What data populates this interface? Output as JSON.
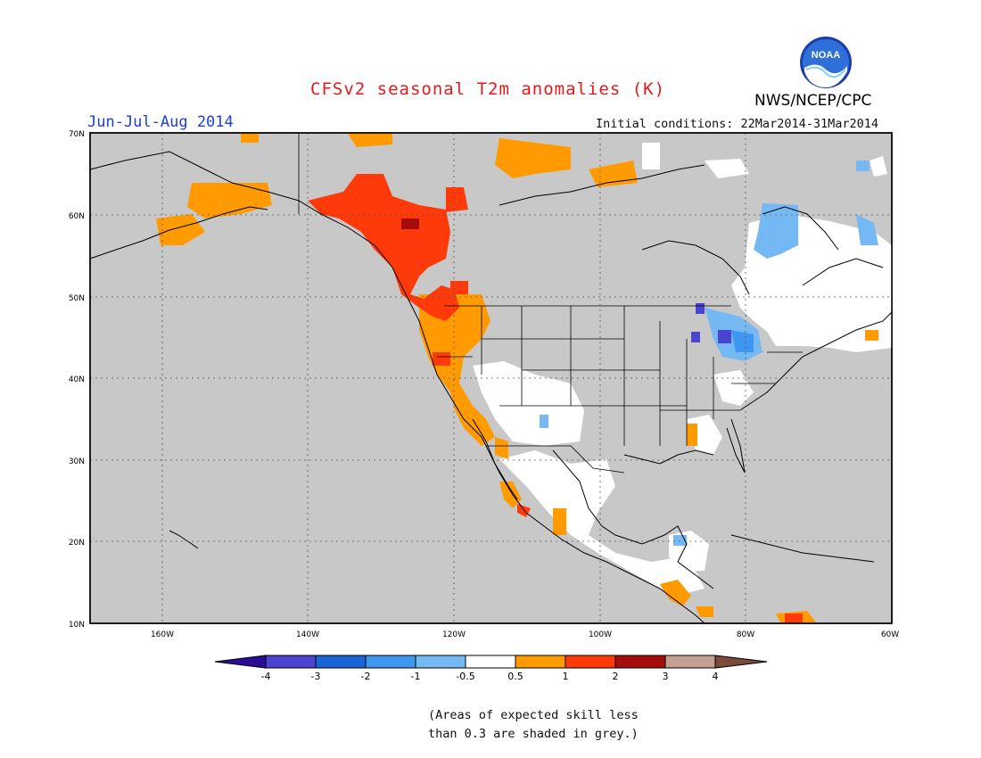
{
  "title": "CFSv2 seasonal T2m anomalies (K)",
  "period": "Jun-Jul-Aug 2014",
  "initial_conditions": "Initial conditions: 22Mar2014-31Mar2014",
  "agency": "NWS/NCEP/CPC",
  "logo_text": "NOAA",
  "axes": {
    "lat_labels": [
      "70N",
      "60N",
      "50N",
      "40N",
      "30N",
      "20N",
      "10N"
    ],
    "lon_labels": [
      "160W",
      "140W",
      "120W",
      "100W",
      "80W",
      "60W"
    ]
  },
  "legend": {
    "ticks": [
      "-4",
      "-3",
      "-2",
      "-1",
      "-0.5",
      "0.5",
      "1",
      "2",
      "3",
      "4"
    ],
    "colors": [
      "#2a0e96",
      "#4a44d0",
      "#1a64d6",
      "#3f96ef",
      "#74b9f4",
      "#ffffff",
      "#ff9a00",
      "#ff3a0a",
      "#a50d0d",
      "#c4a092",
      "#7a4a3a"
    ]
  },
  "colors": {
    "no_skill": "#c8c8c8",
    "ocean_land_bg": "#c8c8c8",
    "warm_1": "#ff9a00",
    "warm_2": "#ff3a0a",
    "warm_3": "#a50d0d",
    "cool_1": "#74b9f4",
    "cool_2": "#3f96ef",
    "cool_3": "#4a44d0"
  },
  "note": [
    "(Areas of expected skill less",
    "than 0.3 are shaded in grey.)"
  ]
}
